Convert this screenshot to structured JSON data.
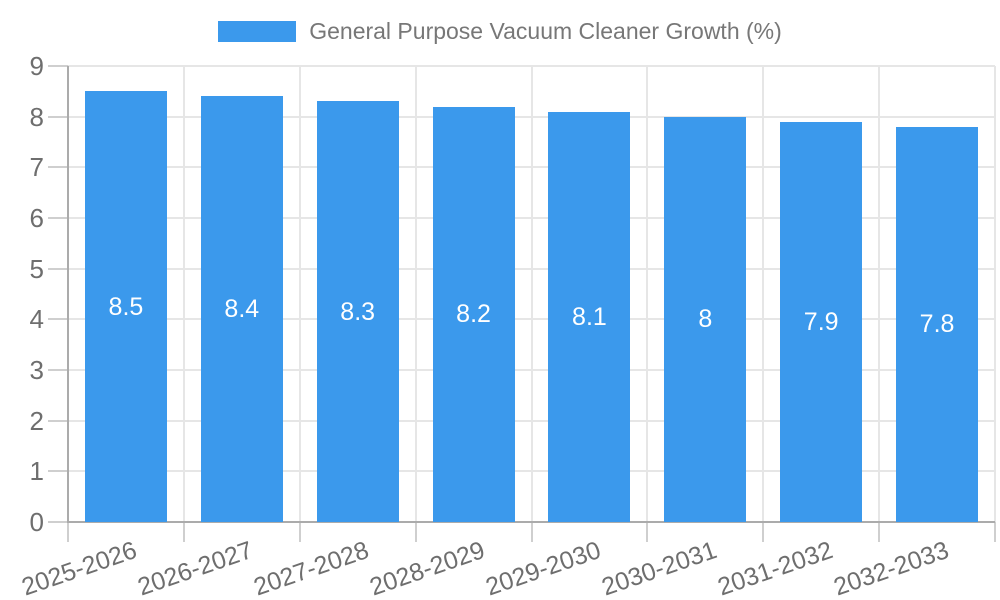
{
  "colors": {
    "bar": "#3B99EC",
    "axis_line": "#ABABAB",
    "grid_line": "#E6E6E6",
    "tick_mark": "#CFCFCF",
    "tick_text": "#6E6E6E",
    "legend_text": "#777777",
    "bar_label_text": "#FFFFFF",
    "background": "#FFFFFF"
  },
  "chart_data": {
    "type": "bar",
    "legend": "General Purpose Vacuum Cleaner Growth (%)",
    "legend_position": "top",
    "categories": [
      "2025-2026",
      "2026-2027",
      "2027-2028",
      "2028-2029",
      "2029-2030",
      "2030-2031",
      "2031-2032",
      "2032-2033"
    ],
    "values": [
      8.5,
      8.4,
      8.3,
      8.2,
      8.1,
      8,
      7.9,
      7.8
    ],
    "bar_labels": [
      "8.5",
      "8.4",
      "8.3",
      "8.2",
      "8.1",
      "8",
      "7.9",
      "7.8"
    ],
    "title": "",
    "xlabel": "",
    "ylabel": "",
    "ylim": [
      0,
      9
    ],
    "yticks": [
      0,
      1,
      2,
      3,
      4,
      5,
      6,
      7,
      8,
      9
    ],
    "grid": true,
    "x_label_rotation_deg": -19
  }
}
